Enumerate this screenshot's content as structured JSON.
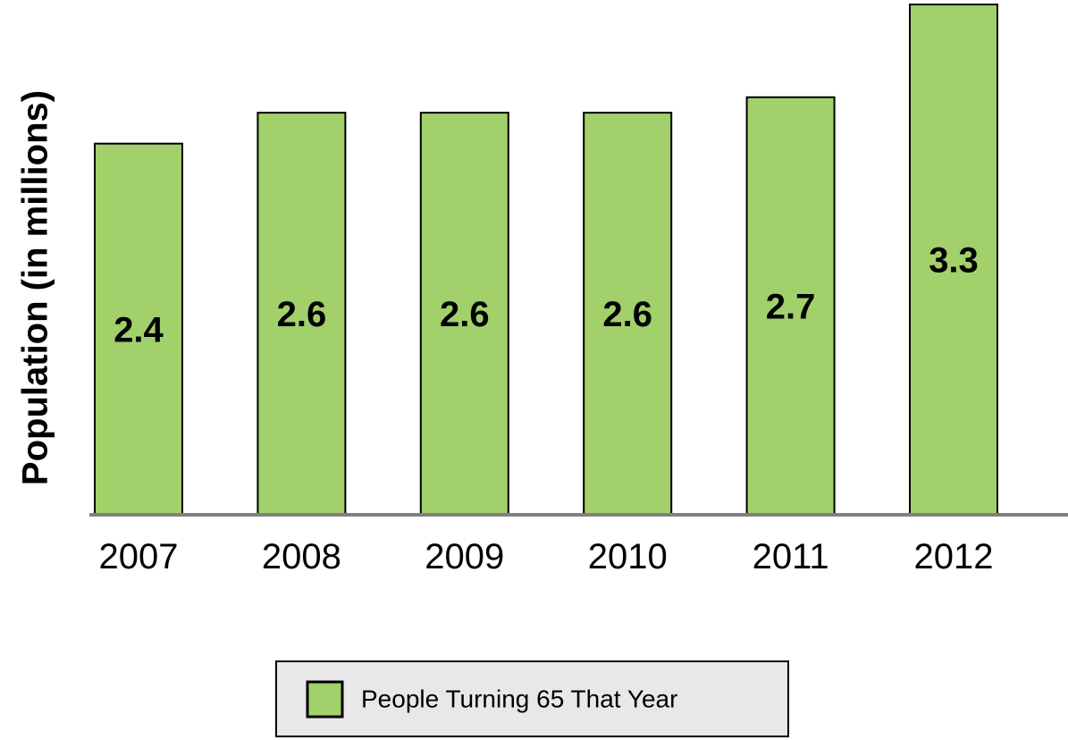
{
  "chart_data": {
    "type": "bar",
    "ylabel": "Population (in millions)",
    "xlabel": "",
    "categories": [
      "2007",
      "2008",
      "2009",
      "2010",
      "2011",
      "2012"
    ],
    "series": [
      {
        "name": "People Turning 65 That Year",
        "values": [
          2.4,
          2.6,
          2.6,
          2.6,
          2.7,
          3.3
        ],
        "color": "#a2d06a"
      }
    ],
    "data_labels": [
      "2.4",
      "2.6",
      "2.6",
      "2.6",
      "2.7",
      "3.3"
    ],
    "ylim": [
      0,
      3.3
    ],
    "grid": false,
    "legend_position": "bottom",
    "colors": {
      "bar_fill": "#a2d06a",
      "bar_stroke": "#000000",
      "axis": "#808080",
      "legend_background": "#e8e8e8",
      "legend_border": "#000000"
    }
  }
}
